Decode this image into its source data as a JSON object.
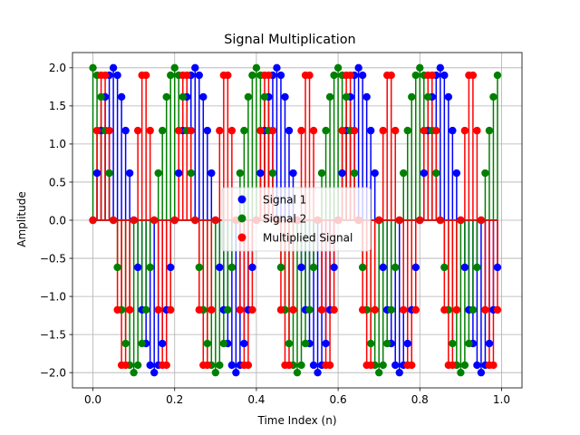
{
  "chart_data": {
    "type": "stem",
    "title": "Signal Multiplication",
    "xlabel": "Time Index (n)",
    "ylabel": "Amplitude",
    "xlim": [
      -0.05,
      1.05
    ],
    "ylim": [
      -2.2,
      2.2
    ],
    "xticks": [
      0.0,
      0.2,
      0.4,
      0.6,
      0.8,
      1.0
    ],
    "xtick_labels": [
      "0.0",
      "0.2",
      "0.4",
      "0.6",
      "0.8",
      "1.0"
    ],
    "yticks": [
      -2.0,
      -1.5,
      -1.0,
      -0.5,
      0.0,
      0.5,
      1.0,
      1.5,
      2.0
    ],
    "ytick_labels": [
      "−2.0",
      "−1.5",
      "−1.0",
      "−0.5",
      "0.0",
      "0.5",
      "1.0",
      "1.5",
      "2.0"
    ],
    "grid": true,
    "legend_position": "center",
    "x_step": 0.01,
    "n_points": 100,
    "baseline": 0,
    "series": [
      {
        "name": "Signal 1",
        "color": "#0000ff",
        "x": [
          0.0,
          0.01,
          0.02,
          0.03,
          0.04,
          0.05,
          0.06,
          0.07,
          0.08,
          0.09,
          0.1,
          0.11,
          0.12,
          0.13,
          0.14,
          0.15,
          0.16,
          0.17,
          0.18,
          0.19,
          0.2,
          0.21,
          0.22,
          0.23,
          0.24,
          0.25,
          0.26,
          0.27,
          0.28,
          0.29,
          0.3,
          0.31,
          0.32,
          0.33,
          0.34,
          0.35,
          0.36,
          0.37,
          0.38,
          0.39,
          0.4,
          0.41,
          0.42,
          0.43,
          0.44,
          0.45,
          0.46,
          0.47,
          0.48,
          0.49,
          0.5,
          0.51,
          0.52,
          0.53,
          0.54,
          0.55,
          0.56,
          0.57,
          0.58,
          0.59,
          0.6,
          0.61,
          0.62,
          0.63,
          0.64,
          0.65,
          0.66,
          0.67,
          0.68,
          0.69,
          0.7,
          0.71,
          0.72,
          0.73,
          0.74,
          0.75,
          0.76,
          0.77,
          0.78,
          0.79,
          0.8,
          0.81,
          0.82,
          0.83,
          0.84,
          0.85,
          0.86,
          0.87,
          0.88,
          0.89,
          0.9,
          0.91,
          0.92,
          0.93,
          0.94,
          0.95,
          0.96,
          0.97,
          0.98,
          0.99
        ],
        "y": [
          0.0,
          0.618,
          1.176,
          1.618,
          1.902,
          2.0,
          1.902,
          1.618,
          1.176,
          0.618,
          0.0,
          -0.618,
          -1.176,
          -1.618,
          -1.902,
          -2.0,
          -1.902,
          -1.618,
          -1.176,
          -0.618,
          0.0,
          0.618,
          1.176,
          1.618,
          1.902,
          2.0,
          1.902,
          1.618,
          1.176,
          0.618,
          0.0,
          -0.618,
          -1.176,
          -1.618,
          -1.902,
          -2.0,
          -1.902,
          -1.618,
          -1.176,
          -0.618,
          0.0,
          0.618,
          1.176,
          1.618,
          1.902,
          2.0,
          1.902,
          1.618,
          1.176,
          0.618,
          0.0,
          -0.618,
          -1.176,
          -1.618,
          -1.902,
          -2.0,
          -1.902,
          -1.618,
          -1.176,
          -0.618,
          0.0,
          0.618,
          1.176,
          1.618,
          1.902,
          2.0,
          1.902,
          1.618,
          1.176,
          0.618,
          0.0,
          -0.618,
          -1.176,
          -1.618,
          -1.902,
          -2.0,
          -1.902,
          -1.618,
          -1.176,
          -0.618,
          0.0,
          0.618,
          1.176,
          1.618,
          1.902,
          2.0,
          1.902,
          1.618,
          1.176,
          0.618,
          0.0,
          -0.618,
          -1.176,
          -1.618,
          -1.902,
          -2.0,
          -1.902,
          -1.618,
          -1.176,
          -0.618
        ]
      },
      {
        "name": "Signal 2",
        "color": "#008000",
        "x": [
          0.0,
          0.01,
          0.02,
          0.03,
          0.04,
          0.05,
          0.06,
          0.07,
          0.08,
          0.09,
          0.1,
          0.11,
          0.12,
          0.13,
          0.14,
          0.15,
          0.16,
          0.17,
          0.18,
          0.19,
          0.2,
          0.21,
          0.22,
          0.23,
          0.24,
          0.25,
          0.26,
          0.27,
          0.28,
          0.29,
          0.3,
          0.31,
          0.32,
          0.33,
          0.34,
          0.35,
          0.36,
          0.37,
          0.38,
          0.39,
          0.4,
          0.41,
          0.42,
          0.43,
          0.44,
          0.45,
          0.46,
          0.47,
          0.48,
          0.49,
          0.5,
          0.51,
          0.52,
          0.53,
          0.54,
          0.55,
          0.56,
          0.57,
          0.58,
          0.59,
          0.6,
          0.61,
          0.62,
          0.63,
          0.64,
          0.65,
          0.66,
          0.67,
          0.68,
          0.69,
          0.7,
          0.71,
          0.72,
          0.73,
          0.74,
          0.75,
          0.76,
          0.77,
          0.78,
          0.79,
          0.8,
          0.81,
          0.82,
          0.83,
          0.84,
          0.85,
          0.86,
          0.87,
          0.88,
          0.89,
          0.9,
          0.91,
          0.92,
          0.93,
          0.94,
          0.95,
          0.96,
          0.97,
          0.98,
          0.99
        ],
        "y": [
          2.0,
          1.902,
          1.618,
          1.176,
          0.618,
          0.0,
          -0.618,
          -1.176,
          -1.618,
          -1.902,
          -2.0,
          -1.902,
          -1.618,
          -1.176,
          -0.618,
          0.0,
          0.618,
          1.176,
          1.618,
          1.902,
          2.0,
          1.902,
          1.618,
          1.176,
          0.618,
          0.0,
          -0.618,
          -1.176,
          -1.618,
          -1.902,
          -2.0,
          -1.902,
          -1.618,
          -1.176,
          -0.618,
          0.0,
          0.618,
          1.176,
          1.618,
          1.902,
          2.0,
          1.902,
          1.618,
          1.176,
          0.618,
          0.0,
          -0.618,
          -1.176,
          -1.618,
          -1.902,
          -2.0,
          -1.902,
          -1.618,
          -1.176,
          -0.618,
          0.0,
          0.618,
          1.176,
          1.618,
          1.902,
          2.0,
          1.902,
          1.618,
          1.176,
          0.618,
          0.0,
          -0.618,
          -1.176,
          -1.618,
          -1.902,
          -2.0,
          -1.902,
          -1.618,
          -1.176,
          -0.618,
          0.0,
          0.618,
          1.176,
          1.618,
          1.902,
          2.0,
          1.902,
          1.618,
          1.176,
          0.618,
          0.0,
          -0.618,
          -1.176,
          -1.618,
          -1.902,
          -2.0,
          -1.902,
          -1.618,
          -1.176,
          -0.618,
          0.0,
          0.618,
          1.176,
          1.618,
          1.902
        ]
      },
      {
        "name": "Multiplied Signal",
        "color": "#ff0000",
        "x": [
          0.0,
          0.01,
          0.02,
          0.03,
          0.04,
          0.05,
          0.06,
          0.07,
          0.08,
          0.09,
          0.1,
          0.11,
          0.12,
          0.13,
          0.14,
          0.15,
          0.16,
          0.17,
          0.18,
          0.19,
          0.2,
          0.21,
          0.22,
          0.23,
          0.24,
          0.25,
          0.26,
          0.27,
          0.28,
          0.29,
          0.3,
          0.31,
          0.32,
          0.33,
          0.34,
          0.35,
          0.36,
          0.37,
          0.38,
          0.39,
          0.4,
          0.41,
          0.42,
          0.43,
          0.44,
          0.45,
          0.46,
          0.47,
          0.48,
          0.49,
          0.5,
          0.51,
          0.52,
          0.53,
          0.54,
          0.55,
          0.56,
          0.57,
          0.58,
          0.59,
          0.6,
          0.61,
          0.62,
          0.63,
          0.64,
          0.65,
          0.66,
          0.67,
          0.68,
          0.69,
          0.7,
          0.71,
          0.72,
          0.73,
          0.74,
          0.75,
          0.76,
          0.77,
          0.78,
          0.79,
          0.8,
          0.81,
          0.82,
          0.83,
          0.84,
          0.85,
          0.86,
          0.87,
          0.88,
          0.89,
          0.9,
          0.91,
          0.92,
          0.93,
          0.94,
          0.95,
          0.96,
          0.97,
          0.98,
          0.99
        ],
        "y": [
          0.0,
          1.176,
          1.902,
          1.902,
          1.176,
          0.0,
          -1.176,
          -1.902,
          -1.902,
          -1.176,
          0.0,
          1.176,
          1.902,
          1.902,
          1.176,
          0.0,
          -1.176,
          -1.902,
          -1.902,
          -1.176,
          0.0,
          1.176,
          1.902,
          1.902,
          1.176,
          0.0,
          -1.176,
          -1.902,
          -1.902,
          -1.176,
          0.0,
          1.176,
          1.902,
          1.902,
          1.176,
          0.0,
          -1.176,
          -1.902,
          -1.902,
          -1.176,
          0.0,
          1.176,
          1.902,
          1.902,
          1.176,
          0.0,
          -1.176,
          -1.902,
          -1.902,
          -1.176,
          0.0,
          1.176,
          1.902,
          1.902,
          1.176,
          0.0,
          -1.176,
          -1.902,
          -1.902,
          -1.176,
          0.0,
          1.176,
          1.902,
          1.902,
          1.176,
          0.0,
          -1.176,
          -1.902,
          -1.902,
          -1.176,
          0.0,
          1.176,
          1.902,
          1.902,
          1.176,
          0.0,
          -1.176,
          -1.902,
          -1.902,
          -1.176,
          0.0,
          1.176,
          1.902,
          1.902,
          1.176,
          0.0,
          -1.176,
          -1.902,
          -1.902,
          -1.176,
          0.0,
          1.176,
          1.902,
          1.902,
          1.176,
          0.0,
          -1.176,
          -1.902,
          -1.902,
          -1.176
        ]
      }
    ]
  }
}
